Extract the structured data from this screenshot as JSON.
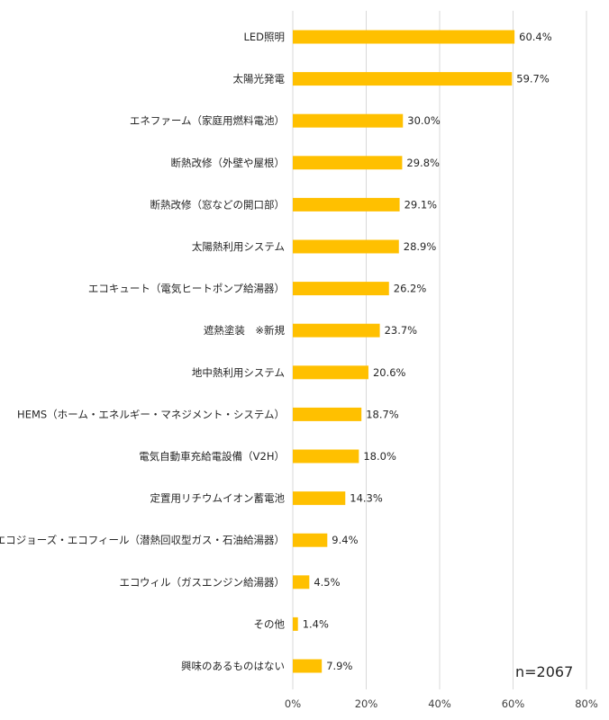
{
  "chart_data": {
    "type": "bar",
    "orientation": "horizontal",
    "categories": [
      "LED照明",
      "太陽光発電",
      "エネファーム（家庭用燃料電池）",
      "断熱改修（外壁や屋根）",
      "断熱改修（窓などの開口部）",
      "太陽熱利用システム",
      "エコキュート（電気ヒートポンプ給湯器）",
      "遮熱塗装　※新規",
      "地中熱利用システム",
      "HEMS（ホーム・エネルギー・マネジメント・システム）",
      "電気自動車充給電設備（V2H）",
      "定置用リチウムイオン蓄電池",
      "エコジョーズ・エコフィール（潜熱回収型ガス・石油給湯器）",
      "エコウィル（ガスエンジン給湯器）",
      "その他",
      "興味のあるものはない"
    ],
    "values": [
      60.4,
      59.7,
      30.0,
      29.8,
      29.1,
      28.9,
      26.2,
      23.7,
      20.6,
      18.7,
      18.0,
      14.3,
      9.4,
      4.5,
      1.4,
      7.9
    ],
    "value_labels": [
      "60.4%",
      "59.7%",
      "30.0%",
      "29.8%",
      "29.1%",
      "28.9%",
      "26.2%",
      "23.7%",
      "20.6%",
      "18.7%",
      "18.0%",
      "14.3%",
      "9.4%",
      "4.5%",
      "1.4%",
      "7.9%"
    ],
    "xlim": [
      0,
      80
    ],
    "xticks": [
      0,
      20,
      40,
      60,
      80
    ],
    "xtick_labels": [
      "0%",
      "20%",
      "40%",
      "60%",
      "80%"
    ],
    "grid": true,
    "legend": "none",
    "title": "",
    "xlabel": "",
    "ylabel": "",
    "annotation": "n=2067",
    "bar_color": "#FFC000",
    "grid_color": "#D9D9D9"
  }
}
